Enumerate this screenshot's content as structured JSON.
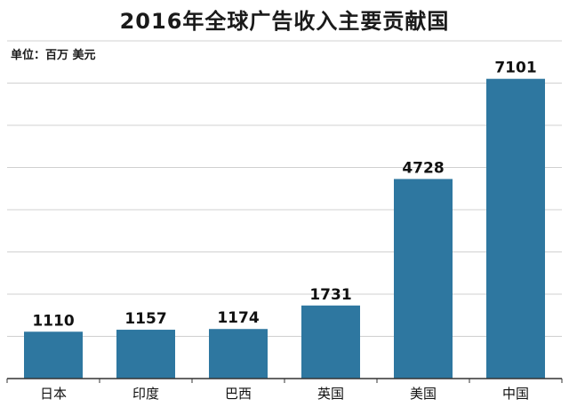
{
  "chart_data": {
    "type": "bar",
    "title": "2016年全球广告收入主要贡献国",
    "unit_label": "单位：百万 美元",
    "categories": [
      "日本",
      "印度",
      "巴西",
      "英国",
      "美国",
      "中国"
    ],
    "values": [
      1110,
      1157,
      1174,
      1731,
      4728,
      7101
    ],
    "data_labels": [
      "1110",
      "1157",
      "1174",
      "1731",
      "4728",
      "7101"
    ],
    "ylim": [
      0,
      8000
    ],
    "grid": true,
    "bar_color": "#2e77a0",
    "grid_color": "#d0d0d0"
  }
}
